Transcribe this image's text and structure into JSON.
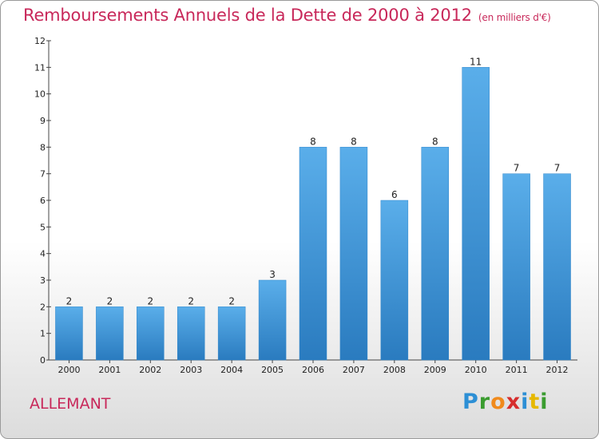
{
  "header": {
    "title": "Remboursements Annuels de la Dette de 2000 à 2012",
    "unit": "(en milliers d'€)"
  },
  "footer": {
    "commune": "ALLEMANT",
    "logo_letters": [
      "P",
      "r",
      "o",
      "x",
      "i",
      "t",
      "i"
    ],
    "logo_colors": [
      "#2d8fd5",
      "#3a9c2f",
      "#f08a1c",
      "#d62d2d",
      "#2d8fd5",
      "#e6b800",
      "#3a9c2f"
    ]
  },
  "chart_data": {
    "type": "bar",
    "title": "Remboursements Annuels de la Dette de 2000 à 2012",
    "categories": [
      "2000",
      "2001",
      "2002",
      "2003",
      "2004",
      "2005",
      "2006",
      "2007",
      "2008",
      "2009",
      "2010",
      "2011",
      "2012"
    ],
    "values": [
      2,
      2,
      2,
      2,
      2,
      3,
      8,
      8,
      6,
      8,
      11,
      7,
      7
    ],
    "value_labels": [
      "2",
      "2",
      "2",
      "2",
      "2",
      "3",
      "8",
      "8",
      "6",
      "8",
      "11",
      "7",
      "7"
    ],
    "yticks": [
      "0",
      "1",
      "2",
      "3",
      "4",
      "5",
      "6",
      "7",
      "8",
      "9",
      "10",
      "11",
      "12"
    ],
    "ylim": [
      0,
      12
    ],
    "grid": false,
    "bar_color_top": "#5aaeea",
    "bar_color_bottom": "#2a7bbf"
  }
}
